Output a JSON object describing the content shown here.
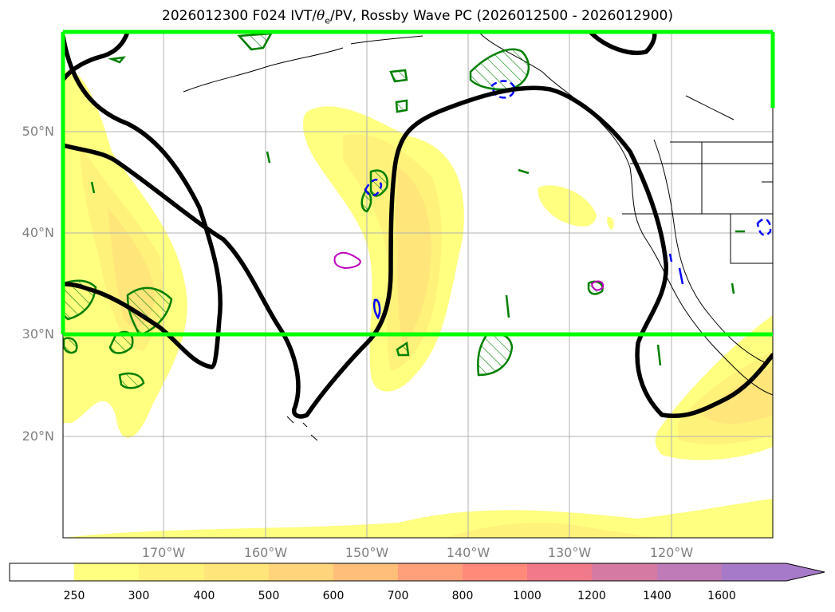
{
  "title": {
    "prefix": "2026012300 F024 IVT/",
    "theta": "θ",
    "theta_sub": "e",
    "suffix": "/PV, Rossby Wave PC (2026012500 - 2026012900)"
  },
  "latitude_labels": [
    "50°N",
    "40°N",
    "30°N",
    "20°N"
  ],
  "longitude_labels": [
    "170°W",
    "160°W",
    "150°W",
    "140°W",
    "130°W",
    "120°W"
  ],
  "colorbar": {
    "ticks": [
      "250",
      "300",
      "400",
      "500",
      "600",
      "700",
      "800",
      "1000",
      "1200",
      "1400",
      "1600"
    ],
    "colors": [
      "#ffffff",
      "#ffff80",
      "#fff27a",
      "#ffe57a",
      "#ffd47a",
      "#ffbe7a",
      "#ffa07a",
      "#ff8a7a",
      "#f07a8a",
      "#d57aa0",
      "#bf7ab8",
      "#a67ac8"
    ]
  },
  "colors": {
    "box": "#00ff00",
    "trough_line": "#000000",
    "theta_contour": "#007f00",
    "pv_negative": "#0000ff",
    "pv_positive": "#bf00bf"
  }
}
